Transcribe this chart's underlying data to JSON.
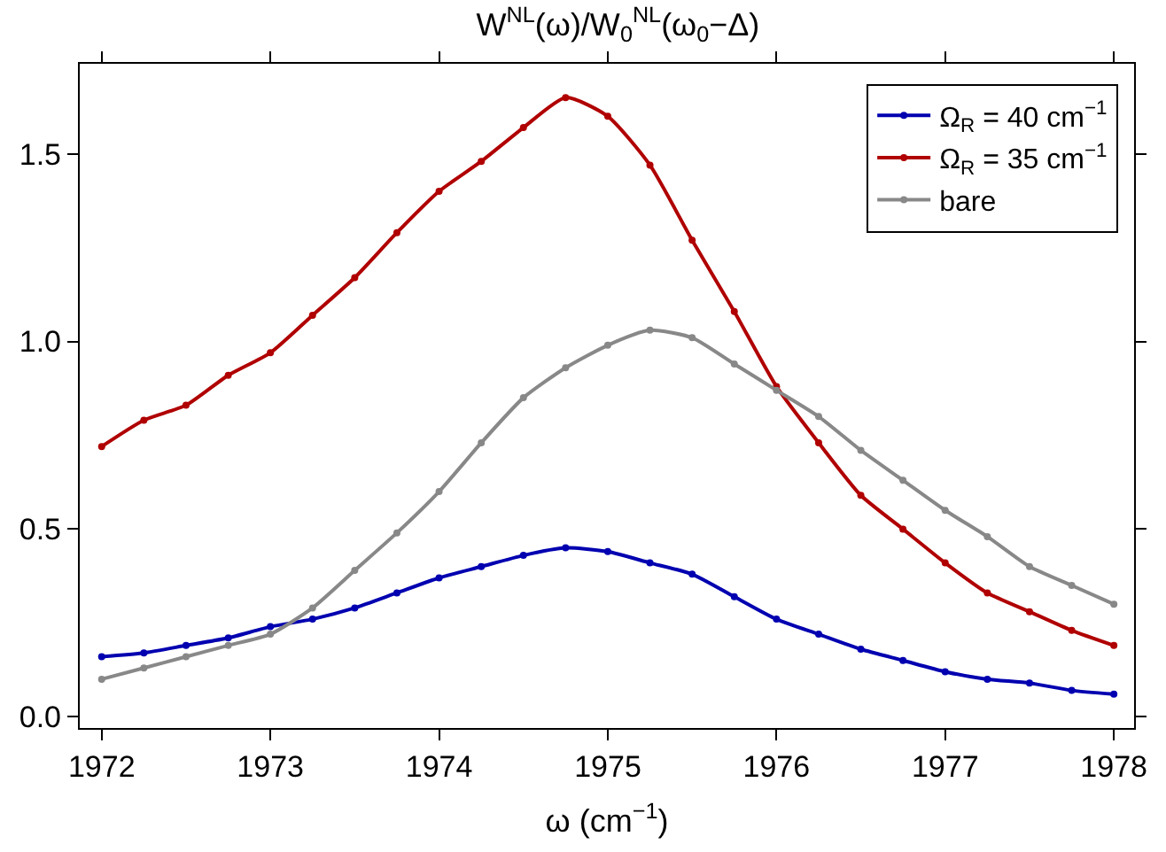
{
  "chart_data": {
    "type": "line",
    "title": "W$^{NL}$(ω)/W$_{0}$$^{NL}$(ω$_{0}$−Δ)",
    "xlabel": "ω (cm$^{−1}$)",
    "x": [
      1972,
      1972.25,
      1972.5,
      1972.75,
      1973,
      1973.25,
      1973.5,
      1973.75,
      1974,
      1974.25,
      1974.5,
      1974.75,
      1975,
      1975.25,
      1975.5,
      1975.75,
      1976,
      1976.25,
      1976.5,
      1976.75,
      1977,
      1977.25,
      1977.5,
      1977.75,
      1978
    ],
    "series": [
      {
        "name": "Ω$_{R}$ = 40 cm$^{−1}$",
        "color": "#0000b0",
        "values": [
          0.16,
          0.17,
          0.19,
          0.21,
          0.24,
          0.26,
          0.29,
          0.33,
          0.37,
          0.4,
          0.43,
          0.45,
          0.44,
          0.41,
          0.38,
          0.32,
          0.26,
          0.22,
          0.18,
          0.15,
          0.12,
          0.1,
          0.09,
          0.07,
          0.06
        ]
      },
      {
        "name": "Ω$_{R}$ = 35 cm$^{−1}$",
        "color": "#b00000",
        "values": [
          0.72,
          0.79,
          0.83,
          0.91,
          0.97,
          1.07,
          1.17,
          1.29,
          1.4,
          1.48,
          1.57,
          1.65,
          1.6,
          1.47,
          1.27,
          1.08,
          0.88,
          0.73,
          0.59,
          0.5,
          0.41,
          0.33,
          0.28,
          0.23,
          0.19
        ]
      },
      {
        "name": "bare",
        "color": "#888888",
        "values": [
          0.1,
          0.13,
          0.16,
          0.19,
          0.22,
          0.29,
          0.39,
          0.49,
          0.6,
          0.73,
          0.85,
          0.93,
          0.99,
          1.03,
          1.01,
          0.94,
          0.87,
          0.8,
          0.71,
          0.63,
          0.55,
          0.48,
          0.4,
          0.35,
          0.3
        ]
      }
    ],
    "xlim": [
      1971.87,
      1978.12
    ],
    "ylim": [
      -0.03,
      1.74
    ],
    "xticks": [
      1972,
      1973,
      1974,
      1975,
      1976,
      1977,
      1978
    ],
    "yticks": [
      {
        "value": 0,
        "label": "0.0"
      },
      {
        "value": 0.5,
        "label": "0.5"
      },
      {
        "value": 1,
        "label": "1.0"
      },
      {
        "value": 1.5,
        "label": "1.5"
      }
    ],
    "legend": "top right",
    "marker": "circle",
    "line_style": "solid"
  }
}
